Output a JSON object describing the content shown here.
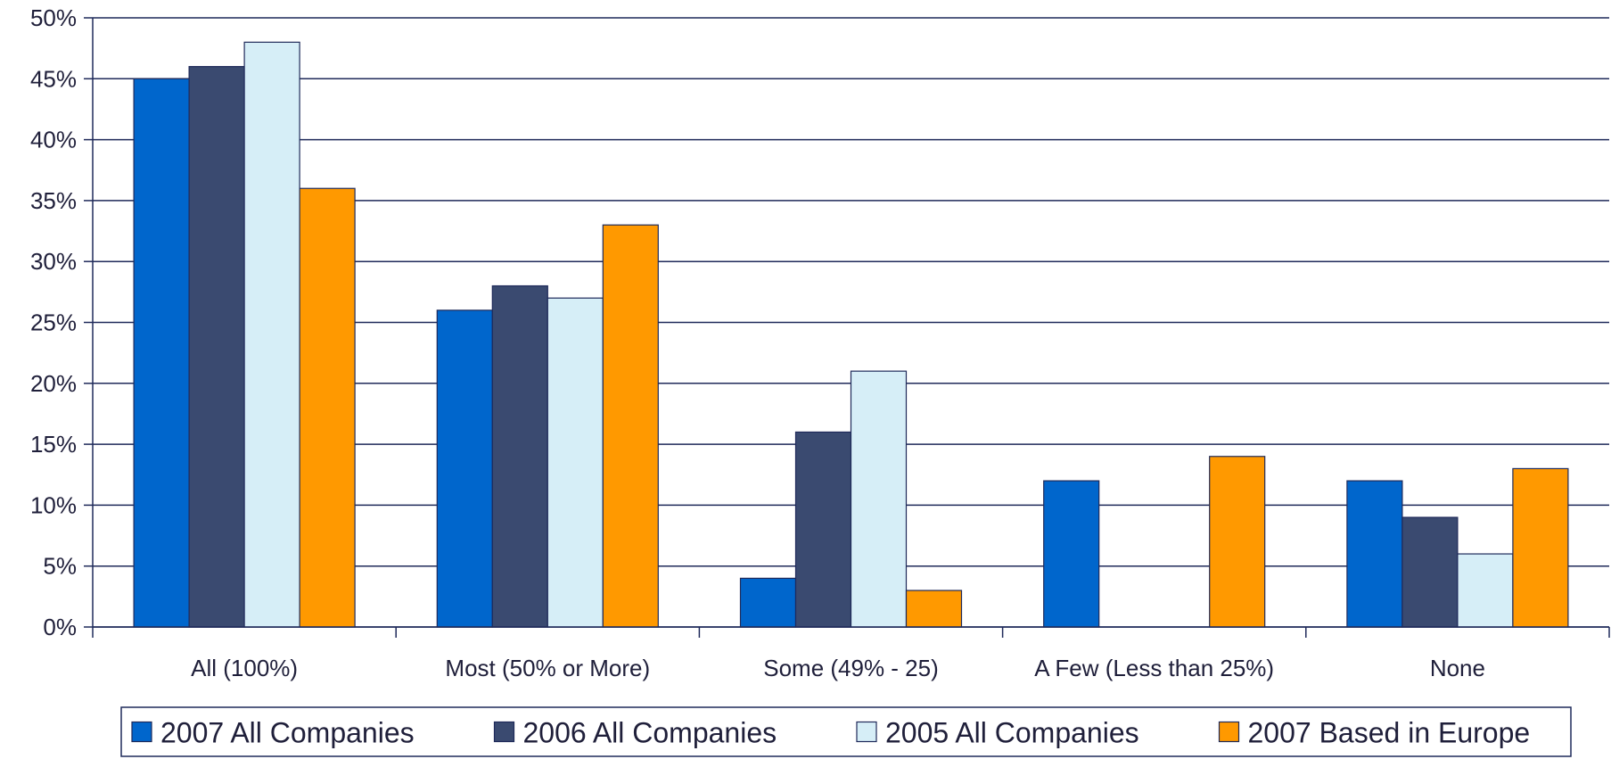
{
  "chart_data": {
    "type": "bar",
    "categories": [
      "All (100%)",
      "Most (50% or More)",
      "Some (49% - 25)",
      "A Few (Less than 25%)",
      "None"
    ],
    "series": [
      {
        "name": "2007 All Companies",
        "color": "#0066cc",
        "values": [
          45,
          26,
          4,
          12,
          12
        ]
      },
      {
        "name": "2006 All Companies",
        "color": "#3a4a70",
        "values": [
          46,
          28,
          16,
          null,
          9
        ]
      },
      {
        "name": "2005 All Companies",
        "color": "#d6eef7",
        "values": [
          48,
          27,
          21,
          null,
          6
        ]
      },
      {
        "name": "2007 Based in Europe",
        "color": "#ff9900",
        "values": [
          36,
          33,
          3,
          14,
          13
        ]
      }
    ],
    "y_ticks": [
      "0%",
      "5%",
      "10%",
      "15%",
      "20%",
      "25%",
      "30%",
      "35%",
      "40%",
      "45%",
      "50%"
    ],
    "ylim": [
      0,
      50
    ],
    "grid": true,
    "legend_position": "bottom",
    "title": "",
    "xlabel": "",
    "ylabel": ""
  }
}
